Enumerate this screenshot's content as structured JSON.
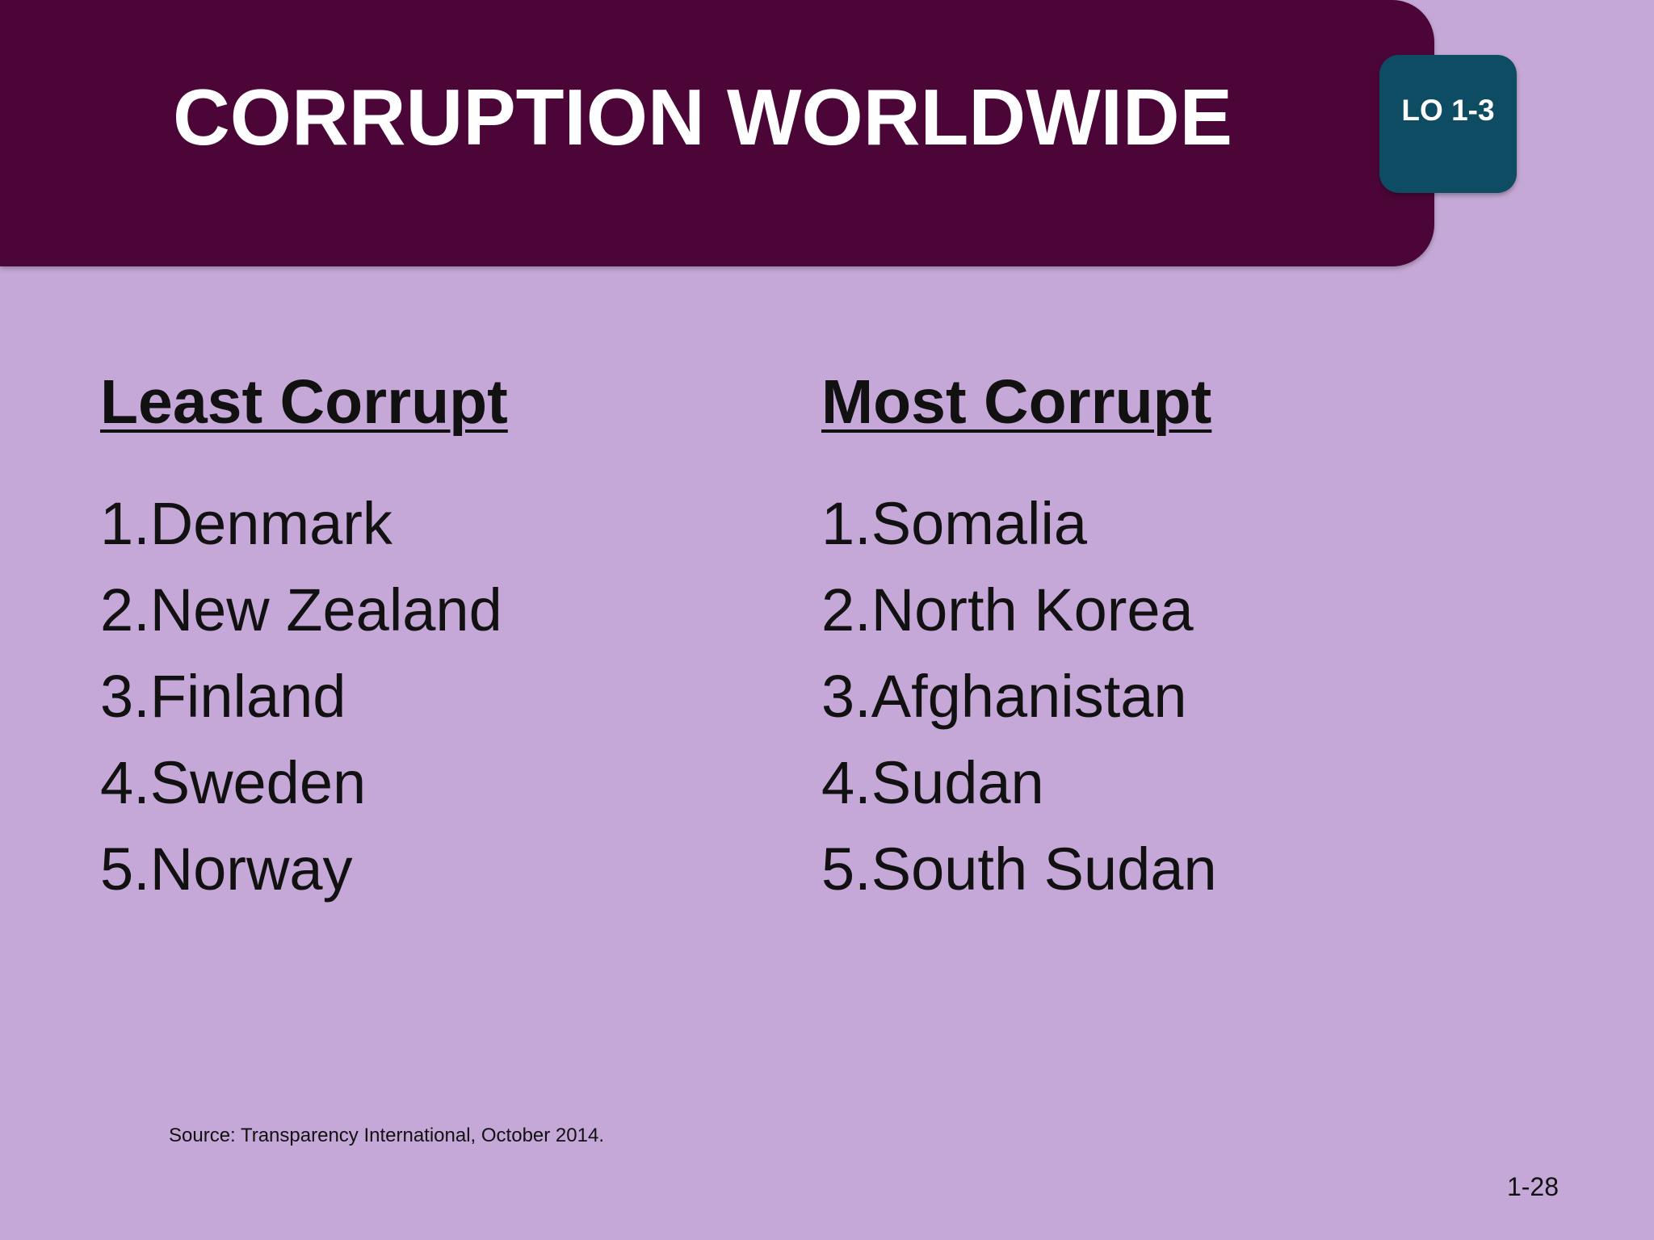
{
  "header": {
    "title": "CORRUPTION WORLDWIDE",
    "badge": "LO 1-3"
  },
  "columns": [
    {
      "heading": "Least Corrupt",
      "items": [
        "1.Denmark",
        "2.New Zealand",
        "3.Finland",
        "4.Sweden",
        "5.Norway"
      ]
    },
    {
      "heading": "Most Corrupt",
      "items": [
        "1.Somalia",
        "2.North Korea",
        "3.Afghanistan",
        "4.Sudan",
        "5.South Sudan"
      ]
    }
  ],
  "source": "Source: Transparency International, October 2014.",
  "page_number": "1-28"
}
